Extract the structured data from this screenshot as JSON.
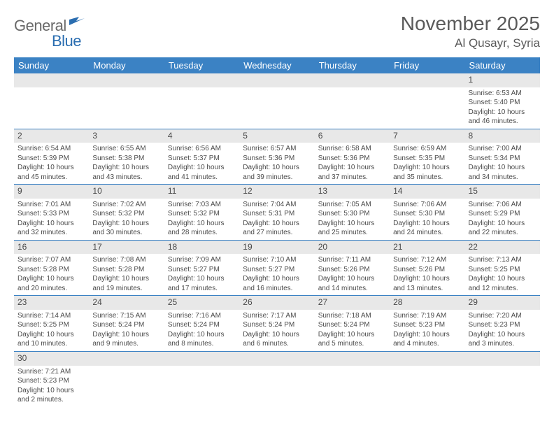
{
  "logo": {
    "main": "General",
    "sub": "Blue"
  },
  "title": "November 2025",
  "location": "Al Qusayr, Syria",
  "header_bg": "#3b82c4",
  "weekdays": [
    "Sunday",
    "Monday",
    "Tuesday",
    "Wednesday",
    "Thursday",
    "Friday",
    "Saturday"
  ],
  "weeks": [
    [
      null,
      null,
      null,
      null,
      null,
      null,
      {
        "n": "1",
        "sr": "6:53 AM",
        "ss": "5:40 PM",
        "dl": "10 hours and 46 minutes."
      }
    ],
    [
      {
        "n": "2",
        "sr": "6:54 AM",
        "ss": "5:39 PM",
        "dl": "10 hours and 45 minutes."
      },
      {
        "n": "3",
        "sr": "6:55 AM",
        "ss": "5:38 PM",
        "dl": "10 hours and 43 minutes."
      },
      {
        "n": "4",
        "sr": "6:56 AM",
        "ss": "5:37 PM",
        "dl": "10 hours and 41 minutes."
      },
      {
        "n": "5",
        "sr": "6:57 AM",
        "ss": "5:36 PM",
        "dl": "10 hours and 39 minutes."
      },
      {
        "n": "6",
        "sr": "6:58 AM",
        "ss": "5:36 PM",
        "dl": "10 hours and 37 minutes."
      },
      {
        "n": "7",
        "sr": "6:59 AM",
        "ss": "5:35 PM",
        "dl": "10 hours and 35 minutes."
      },
      {
        "n": "8",
        "sr": "7:00 AM",
        "ss": "5:34 PM",
        "dl": "10 hours and 34 minutes."
      }
    ],
    [
      {
        "n": "9",
        "sr": "7:01 AM",
        "ss": "5:33 PM",
        "dl": "10 hours and 32 minutes."
      },
      {
        "n": "10",
        "sr": "7:02 AM",
        "ss": "5:32 PM",
        "dl": "10 hours and 30 minutes."
      },
      {
        "n": "11",
        "sr": "7:03 AM",
        "ss": "5:32 PM",
        "dl": "10 hours and 28 minutes."
      },
      {
        "n": "12",
        "sr": "7:04 AM",
        "ss": "5:31 PM",
        "dl": "10 hours and 27 minutes."
      },
      {
        "n": "13",
        "sr": "7:05 AM",
        "ss": "5:30 PM",
        "dl": "10 hours and 25 minutes."
      },
      {
        "n": "14",
        "sr": "7:06 AM",
        "ss": "5:30 PM",
        "dl": "10 hours and 24 minutes."
      },
      {
        "n": "15",
        "sr": "7:06 AM",
        "ss": "5:29 PM",
        "dl": "10 hours and 22 minutes."
      }
    ],
    [
      {
        "n": "16",
        "sr": "7:07 AM",
        "ss": "5:28 PM",
        "dl": "10 hours and 20 minutes."
      },
      {
        "n": "17",
        "sr": "7:08 AM",
        "ss": "5:28 PM",
        "dl": "10 hours and 19 minutes."
      },
      {
        "n": "18",
        "sr": "7:09 AM",
        "ss": "5:27 PM",
        "dl": "10 hours and 17 minutes."
      },
      {
        "n": "19",
        "sr": "7:10 AM",
        "ss": "5:27 PM",
        "dl": "10 hours and 16 minutes."
      },
      {
        "n": "20",
        "sr": "7:11 AM",
        "ss": "5:26 PM",
        "dl": "10 hours and 14 minutes."
      },
      {
        "n": "21",
        "sr": "7:12 AM",
        "ss": "5:26 PM",
        "dl": "10 hours and 13 minutes."
      },
      {
        "n": "22",
        "sr": "7:13 AM",
        "ss": "5:25 PM",
        "dl": "10 hours and 12 minutes."
      }
    ],
    [
      {
        "n": "23",
        "sr": "7:14 AM",
        "ss": "5:25 PM",
        "dl": "10 hours and 10 minutes."
      },
      {
        "n": "24",
        "sr": "7:15 AM",
        "ss": "5:24 PM",
        "dl": "10 hours and 9 minutes."
      },
      {
        "n": "25",
        "sr": "7:16 AM",
        "ss": "5:24 PM",
        "dl": "10 hours and 8 minutes."
      },
      {
        "n": "26",
        "sr": "7:17 AM",
        "ss": "5:24 PM",
        "dl": "10 hours and 6 minutes."
      },
      {
        "n": "27",
        "sr": "7:18 AM",
        "ss": "5:24 PM",
        "dl": "10 hours and 5 minutes."
      },
      {
        "n": "28",
        "sr": "7:19 AM",
        "ss": "5:23 PM",
        "dl": "10 hours and 4 minutes."
      },
      {
        "n": "29",
        "sr": "7:20 AM",
        "ss": "5:23 PM",
        "dl": "10 hours and 3 minutes."
      }
    ],
    [
      {
        "n": "30",
        "sr": "7:21 AM",
        "ss": "5:23 PM",
        "dl": "10 hours and 2 minutes."
      },
      null,
      null,
      null,
      null,
      null,
      null
    ]
  ],
  "labels": {
    "sunrise": "Sunrise: ",
    "sunset": "Sunset: ",
    "daylight": "Daylight: "
  }
}
